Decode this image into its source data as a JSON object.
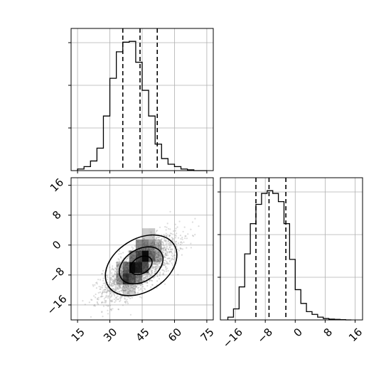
{
  "chart_data": [
    {
      "type": "histogram",
      "panel": "marginal-x",
      "xlim": [
        12,
        78
      ],
      "bin_edges": [
        15,
        18,
        21,
        24,
        27,
        30,
        33,
        36,
        39,
        42,
        45,
        48,
        51,
        54,
        57,
        60,
        63,
        66,
        69,
        72,
        75
      ],
      "counts": [
        2,
        5,
        12,
        28,
        68,
        115,
        148,
        160,
        161,
        135,
        100,
        68,
        33,
        15,
        8,
        5,
        2,
        1,
        0,
        0
      ],
      "quantile_lines": [
        36,
        44,
        52
      ],
      "grid": true,
      "y_tick_labels": false
    },
    {
      "type": "scatter-density",
      "panel": "joint",
      "xlim": [
        12,
        78
      ],
      "ylim": [
        -20,
        18
      ],
      "x_ticks": [
        "15",
        "30",
        "45",
        "60",
        "75"
      ],
      "y_ticks": [
        "−16",
        "−8",
        "0",
        "8",
        "16"
      ],
      "correlation": 0.73,
      "center": [
        44,
        -6
      ],
      "grid": true,
      "contour_levels": 3
    },
    {
      "type": "histogram",
      "panel": "marginal-y",
      "xlim": [
        -20,
        18
      ],
      "bin_edges": [
        -18,
        -16.5,
        -15,
        -13.5,
        -12,
        -10.5,
        -9,
        -7.5,
        -6,
        -4.5,
        -3,
        -1.5,
        0,
        1.5,
        3,
        4.5,
        6,
        7.5,
        9,
        10.5,
        12,
        13.5,
        15
      ],
      "counts": [
        1,
        4,
        12,
        24,
        35,
        42,
        46,
        47,
        46,
        43,
        35,
        22,
        11,
        6,
        3,
        2,
        1,
        0.5,
        0.3,
        0.2,
        0.1,
        0
      ],
      "quantile_lines": [
        -10.5,
        -7,
        -2.5
      ],
      "x_ticks": [
        "−16",
        "−8",
        "0",
        "8",
        "16"
      ],
      "grid": true,
      "y_tick_labels": false
    }
  ]
}
